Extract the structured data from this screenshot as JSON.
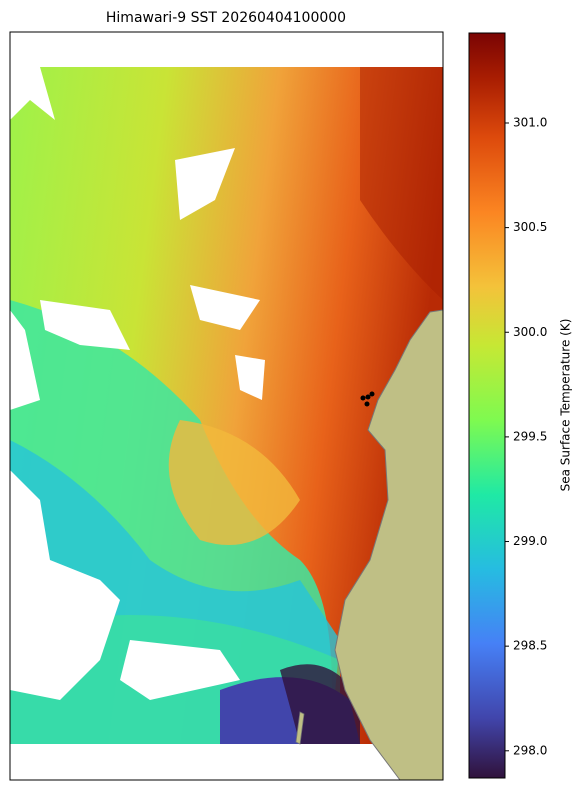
{
  "title": "Himawari-9 SST 20260404100000",
  "colorbar": {
    "label": "Sea Surface Temperature (K)",
    "colormap": "turbo",
    "lim": [
      297.87,
      301.43
    ],
    "ticks": [
      {
        "value": 298,
        "label": "298.0"
      },
      298.5,
      {
        "value": 299,
        "label": "299.0"
      },
      299.5,
      {
        "value": 300,
        "label": "300.0"
      },
      300.5,
      {
        "value": 301,
        "label": "301.0"
      }
    ]
  }
}
